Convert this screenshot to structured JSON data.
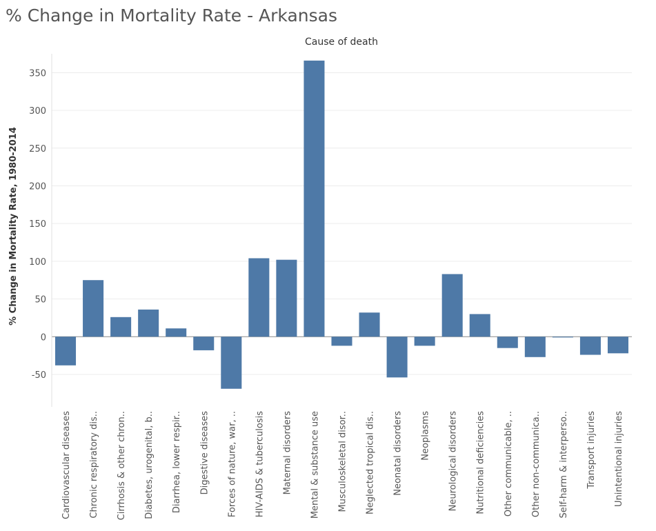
{
  "title": "% Change in Mortality Rate - Arkansas",
  "chart_data": {
    "type": "bar",
    "column_header": "Cause of death",
    "ylabel": "% Change in Mortality Rate, 1980-2014",
    "ylim": [
      -93,
      375
    ],
    "yticks": [
      -50,
      0,
      50,
      100,
      150,
      200,
      250,
      300,
      350
    ],
    "grid": true,
    "bar_color": "#4e79a7",
    "categories": [
      "Cardiovascular diseases",
      "Chronic respiratory dis..",
      "Cirrhosis & other chron..",
      "Diabetes, urogenital, b..",
      "Diarrhea, lower respir..",
      "Digestive diseases",
      "Forces of nature, war, ..",
      "HIV-AIDS & tuberculosis",
      "Maternal disorders",
      "Mental & substance use",
      "Musculoskeletal disor..",
      "Neglected tropical dis..",
      "Neonatal disorders",
      "Neoplasms",
      "Neurological disorders",
      "Nutritional deficiencies",
      "Other communicable, ..",
      "Other non-communica..",
      "Self-harm & interperso..",
      "Transport injuries",
      "Unintentional injuries"
    ],
    "values": [
      -38,
      75,
      26,
      36,
      11,
      -18,
      -69,
      104,
      102,
      366,
      -12,
      32,
      -54,
      -12,
      83,
      30,
      -15,
      -27,
      -1,
      -24,
      -22
    ]
  }
}
